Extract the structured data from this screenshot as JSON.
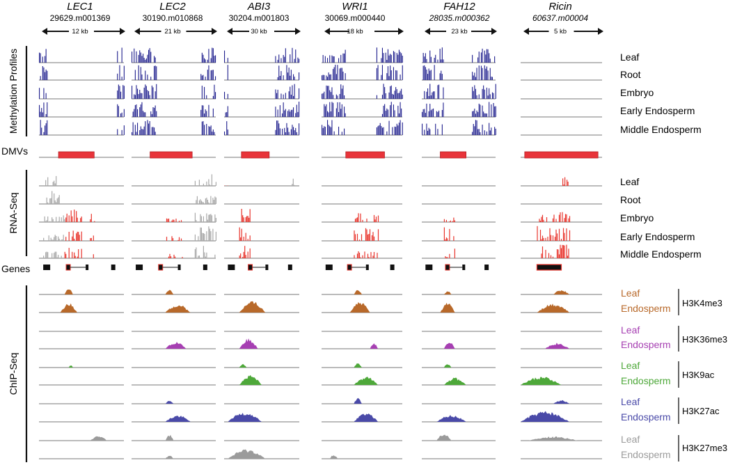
{
  "colors": {
    "methylation": "#1c1c8c",
    "dmv": "#e8343a",
    "rna_red": "#e8342c",
    "rna_grey": "#a8a8a8",
    "baseline": "#777777",
    "h3k4me3": "#b8692a",
    "h3k36me3": "#a63fb2",
    "h3k9ac": "#4ea83a",
    "h3k27ac": "#4a4aa8",
    "h3k27me3": "#9b9b9b",
    "gene": "#111111"
  },
  "genes": [
    {
      "name": "LEC1",
      "id": "29629.m001369",
      "id_italic": false,
      "scale": "12 kb"
    },
    {
      "name": "LEC2",
      "id": "30190.m010868",
      "id_italic": false,
      "scale": "21 kb"
    },
    {
      "name": "ABI3",
      "id": "30204.m001803",
      "id_italic": false,
      "scale": "30 kb"
    },
    {
      "name": "WRI1",
      "id": "30069.m000440",
      "id_italic": false,
      "scale": "18 kb"
    },
    {
      "name": "FAH12",
      "id": "28035.m000362",
      "id_italic": true,
      "scale": "23 kb"
    },
    {
      "name": "Ricin",
      "id": "60637.m00004",
      "id_italic": true,
      "scale": "5 kb"
    }
  ],
  "sections": {
    "methylation": "Methylation Profiles",
    "dmvs": "DMVs",
    "rnaseq": "RNA-Seq",
    "genes": "Genes",
    "chipseq": "ChIP-Seq"
  },
  "methylation_tissues": [
    "Leaf",
    "Root",
    "Embryo",
    "Early Endosperm",
    "Middle Endosperm"
  ],
  "rna_tissues": [
    "Leaf",
    "Root",
    "Embryo",
    "Early Endosperm",
    "Middle Endosperm"
  ],
  "chip_marks": [
    {
      "mark": "H3K4me3",
      "color_key": "h3k4me3",
      "tissues": [
        "Leaf",
        "Endosperm"
      ]
    },
    {
      "mark": "H3K36me3",
      "color_key": "h3k36me3",
      "tissues": [
        "Leaf",
        "Endosperm"
      ]
    },
    {
      "mark": "H3K9ac",
      "color_key": "h3k9ac",
      "tissues": [
        "Leaf",
        "Endosperm"
      ]
    },
    {
      "mark": "H3K27ac",
      "color_key": "h3k27ac",
      "tissues": [
        "Leaf",
        "Endosperm"
      ]
    },
    {
      "mark": "H3K27me3",
      "color_key": "h3k27me3",
      "tissues": [
        "Leaf",
        "Endosperm"
      ]
    }
  ],
  "methylation_pattern": [
    [
      [
        0,
        0.1
      ],
      [
        0.92,
        1
      ]
    ],
    [
      [
        0,
        0.3
      ],
      [
        0.82,
        1
      ]
    ],
    [
      [
        0,
        0.05
      ],
      [
        0.68,
        1
      ]
    ],
    [
      [
        0,
        0.3
      ],
      [
        0.68,
        1
      ]
    ],
    [
      [
        0,
        0.3
      ],
      [
        0.68,
        1
      ]
    ],
    []
  ],
  "methylation_absent_rows": [
    [],
    [],
    [],
    [],
    [],
    [
      0,
      1,
      2,
      3,
      4
    ]
  ],
  "dmv_spans": [
    [
      0.23,
      0.65
    ],
    [
      0.22,
      0.72
    ],
    [
      0.23,
      0.6
    ],
    [
      0.3,
      0.78
    ],
    [
      0.25,
      0.6
    ],
    [
      0.05,
      0.95
    ]
  ],
  "rna_peaks": [
    [
      [
        [
          0.05,
          0.25,
          0.9,
          "g"
        ]
      ],
      [
        [
          0.05,
          0.25,
          0.9,
          "g"
        ]
      ],
      [
        [
          0.05,
          0.3,
          0.4,
          "g"
        ],
        [
          0.3,
          0.5,
          0.8,
          "r"
        ],
        [
          0.6,
          0.65,
          0.5,
          "r"
        ]
      ],
      [
        [
          0.05,
          0.3,
          0.4,
          "g"
        ],
        [
          0.3,
          0.5,
          0.8,
          "r"
        ],
        [
          0.6,
          0.65,
          0.5,
          "r"
        ]
      ],
      [
        [
          0.05,
          0.3,
          0.4,
          "g"
        ],
        [
          0.3,
          0.5,
          0.8,
          "r"
        ],
        [
          0.6,
          0.65,
          0.5,
          "r"
        ]
      ]
    ],
    [
      [
        [
          0.75,
          1.0,
          0.7,
          "g"
        ]
      ],
      [
        [
          0.75,
          1.0,
          0.5,
          "g"
        ]
      ],
      [
        [
          0.4,
          0.6,
          0.25,
          "r"
        ],
        [
          0.75,
          1.0,
          0.6,
          "g"
        ]
      ],
      [
        [
          0.4,
          0.6,
          0.3,
          "r"
        ],
        [
          0.75,
          1.0,
          0.9,
          "g"
        ]
      ],
      [
        [
          0.4,
          0.6,
          0.3,
          "r"
        ],
        [
          0.75,
          1.0,
          0.8,
          "g"
        ]
      ]
    ],
    [
      [
        [
          0.0,
          0.05,
          0.2,
          "r"
        ],
        [
          0.9,
          0.95,
          0.6,
          "g"
        ]
      ],
      [],
      [
        [
          0.2,
          0.35,
          0.9,
          "r"
        ]
      ],
      [
        [
          0.2,
          0.35,
          0.9,
          "r"
        ]
      ],
      [
        [
          0.2,
          0.35,
          0.9,
          "r"
        ]
      ]
    ],
    [
      [],
      [],
      [
        [
          0.4,
          0.7,
          0.6,
          "r"
        ]
      ],
      [
        [
          0.4,
          0.7,
          0.8,
          "r"
        ]
      ],
      [
        [
          0.4,
          0.7,
          0.5,
          "r"
        ]
      ]
    ],
    [
      [],
      [],
      [
        [
          0.3,
          0.45,
          0.3,
          "r"
        ]
      ],
      [
        [
          0.3,
          0.45,
          0.9,
          "r"
        ]
      ],
      [
        [
          0.3,
          0.45,
          0.6,
          "r"
        ]
      ]
    ],
    [
      [
        [
          0.5,
          0.6,
          0.6,
          "r"
        ]
      ],
      [],
      [
        [
          0.2,
          0.6,
          0.6,
          "r"
        ]
      ],
      [
        [
          0.2,
          0.6,
          0.95,
          "r"
        ]
      ],
      [
        [
          0.2,
          0.6,
          0.9,
          "r"
        ]
      ]
    ]
  ],
  "chip_peaks": [
    [
      [
        [
          0.3,
          0.4,
          0.5
        ]
      ],
      [
        [
          0.25,
          0.45,
          0.8
        ]
      ],
      [],
      [],
      [
        [
          0.35,
          0.4,
          0.2
        ]
      ],
      [],
      [],
      [],
      [
        [
          0.6,
          0.8,
          0.4
        ]
      ],
      []
    ],
    [
      [
        [
          0.4,
          0.5,
          0.4
        ]
      ],
      [
        [
          0.4,
          0.7,
          0.7
        ]
      ],
      [],
      [
        [
          0.4,
          0.65,
          0.6
        ]
      ],
      [],
      [],
      [
        [
          0.4,
          0.5,
          0.25
        ]
      ],
      [
        [
          0.4,
          0.7,
          0.6
        ]
      ],
      [
        [
          0.4,
          0.5,
          0.5
        ]
      ],
      [
        [
          0.4,
          0.5,
          0.3
        ]
      ]
    ],
    [
      [],
      [
        [
          0.2,
          0.55,
          0.95
        ]
      ],
      [],
      [
        [
          0.2,
          0.45,
          0.85
        ]
      ],
      [
        [
          0.2,
          0.3,
          0.35
        ]
      ],
      [
        [
          0.2,
          0.5,
          0.8
        ]
      ],
      [],
      [
        [
          0.05,
          0.5,
          0.85
        ]
      ],
      [],
      [
        [
          0.05,
          0.55,
          0.8
        ]
      ]
    ],
    [
      [
        [
          0.4,
          0.5,
          0.4
        ]
      ],
      [
        [
          0.35,
          0.6,
          0.9
        ]
      ],
      [],
      [
        [
          0.6,
          0.7,
          0.5
        ]
      ],
      [
        [
          0.4,
          0.5,
          0.4
        ]
      ],
      [
        [
          0.4,
          0.7,
          0.7
        ]
      ],
      [
        [
          0.4,
          0.5,
          0.5
        ]
      ],
      [
        [
          0.4,
          0.7,
          0.8
        ]
      ],
      [],
      [
        [
          0.1,
          0.2,
          0.35
        ]
      ]
    ],
    [
      [
        [
          0.3,
          0.4,
          0.3
        ]
      ],
      [
        [
          0.25,
          0.45,
          0.8
        ]
      ],
      [],
      [
        [
          0.3,
          0.45,
          0.6
        ]
      ],
      [
        [
          0.3,
          0.4,
          0.35
        ]
      ],
      [
        [
          0.3,
          0.6,
          0.6
        ]
      ],
      [],
      [
        [
          0.2,
          0.6,
          0.6
        ]
      ],
      [
        [
          0.2,
          0.4,
          0.6
        ]
      ],
      []
    ],
    [
      [
        [
          0.4,
          0.6,
          0.4
        ]
      ],
      [
        [
          0.2,
          0.6,
          0.8
        ]
      ],
      [],
      [
        [
          0.3,
          0.6,
          0.5
        ]
      ],
      [],
      [
        [
          0.0,
          0.5,
          0.7
        ]
      ],
      [
        [
          0.4,
          0.6,
          0.3
        ]
      ],
      [
        [
          0.0,
          0.6,
          0.9
        ]
      ],
      [
        [
          0.1,
          0.7,
          0.35
        ]
      ],
      []
    ]
  ]
}
